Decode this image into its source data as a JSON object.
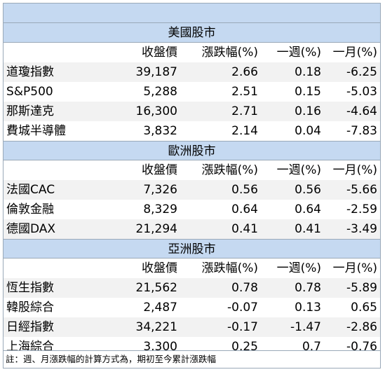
{
  "columns": {
    "close": "收盤價",
    "change": "漲跌幅(%)",
    "week": "一週(%)",
    "month": "一月(%)"
  },
  "sections": [
    {
      "title": "美國股市",
      "rows": [
        {
          "name": "道瓊指數",
          "close": "39,187",
          "change": "2.66",
          "week": "0.18",
          "month": "-6.25"
        },
        {
          "name": "S&P500",
          "close": "5,288",
          "change": "2.51",
          "week": "0.15",
          "month": "-5.03"
        },
        {
          "name": "那斯達克",
          "close": "16,300",
          "change": "2.71",
          "week": "0.16",
          "month": "-4.64"
        },
        {
          "name": "費城半導體",
          "close": "3,832",
          "change": "2.14",
          "week": "0.04",
          "month": "-7.83"
        }
      ]
    },
    {
      "title": "歐洲股市",
      "rows": [
        {
          "name": "法國CAC",
          "close": "7,326",
          "change": "0.56",
          "week": "0.56",
          "month": "-5.66"
        },
        {
          "name": "倫敦金融",
          "close": "8,329",
          "change": "0.64",
          "week": "0.64",
          "month": "-2.59"
        },
        {
          "name": "德國DAX",
          "close": "21,294",
          "change": "0.41",
          "week": "0.41",
          "month": "-3.49"
        }
      ]
    },
    {
      "title": "亞洲股市",
      "rows": [
        {
          "name": "恆生指數",
          "close": "21,562",
          "change": "0.78",
          "week": "0.78",
          "month": "-5.89"
        },
        {
          "name": "韓股綜合",
          "close": "2,487",
          "change": "-0.07",
          "week": "0.13",
          "month": "0.65"
        },
        {
          "name": "日經指數",
          "close": "34,221",
          "change": "-0.17",
          "week": "-1.47",
          "month": "-2.86"
        },
        {
          "name": "上海綜合",
          "close": "3,300",
          "change": "0.25",
          "week": "0.7",
          "month": "-0.76"
        }
      ]
    }
  ],
  "note": "註：週、月漲跌幅的計算方式為，期初至今累計漲跌幅"
}
